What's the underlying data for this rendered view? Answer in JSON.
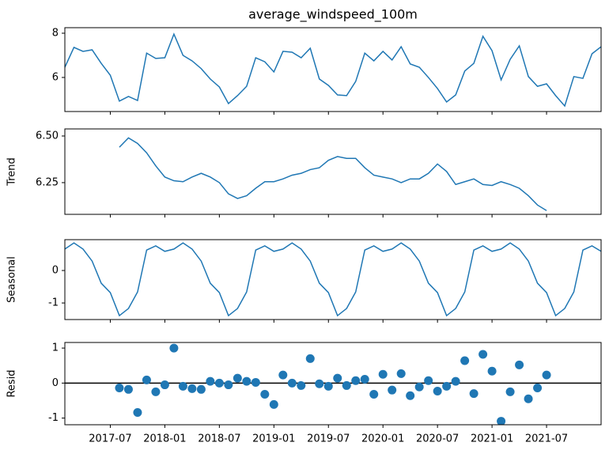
{
  "chart_data": [
    {
      "type": "line",
      "title": "average_windspeed_100m",
      "color": "#1f77b4",
      "x": [
        "2017-02",
        "2017-03",
        "2017-04",
        "2017-05",
        "2017-06",
        "2017-07",
        "2017-08",
        "2017-09",
        "2017-10",
        "2017-11",
        "2017-12",
        "2018-01",
        "2018-02",
        "2018-03",
        "2018-04",
        "2018-05",
        "2018-06",
        "2018-07",
        "2018-08",
        "2018-09",
        "2018-10",
        "2018-11",
        "2018-12",
        "2019-01",
        "2019-02",
        "2019-03",
        "2019-04",
        "2019-05",
        "2019-06",
        "2019-07",
        "2019-08",
        "2019-09",
        "2019-10",
        "2019-11",
        "2019-12",
        "2020-01",
        "2020-02",
        "2020-03",
        "2020-04",
        "2020-05",
        "2020-06",
        "2020-07",
        "2020-08",
        "2020-09",
        "2020-10",
        "2020-11",
        "2020-12",
        "2021-01",
        "2021-02",
        "2021-03",
        "2021-04",
        "2021-05",
        "2021-06",
        "2021-07",
        "2021-08",
        "2021-09",
        "2021-10",
        "2021-11",
        "2021-12",
        "2022-01"
      ],
      "values": [
        6.46,
        7.36,
        7.18,
        7.25,
        6.64,
        6.1,
        4.93,
        5.14,
        4.96,
        7.1,
        6.86,
        6.89,
        7.96,
        7.0,
        6.75,
        6.4,
        5.93,
        5.57,
        4.82,
        5.18,
        5.6,
        6.89,
        6.71,
        6.25,
        7.18,
        7.14,
        6.89,
        7.32,
        5.93,
        5.64,
        5.21,
        5.18,
        5.82,
        7.1,
        6.75,
        7.18,
        6.79,
        7.39,
        6.61,
        6.46,
        6.0,
        5.5,
        4.89,
        5.21,
        6.29,
        6.64,
        7.86,
        7.21,
        5.89,
        6.82,
        7.43,
        6.04,
        5.6,
        5.71,
        5.18,
        4.71,
        6.04,
        5.96,
        7.07,
        7.39
      ],
      "xlim": [
        "2017-02",
        "2022-01"
      ],
      "ylim": [
        4.46,
        8.25
      ],
      "yticks": [
        6,
        8
      ]
    },
    {
      "type": "line",
      "ylabel": "Trend",
      "color": "#1f77b4",
      "x": [
        "2017-02",
        "2017-03",
        "2017-04",
        "2017-05",
        "2017-06",
        "2017-07",
        "2017-08",
        "2017-09",
        "2017-10",
        "2017-11",
        "2017-12",
        "2018-01",
        "2018-02",
        "2018-03",
        "2018-04",
        "2018-05",
        "2018-06",
        "2018-07",
        "2018-08",
        "2018-09",
        "2018-10",
        "2018-11",
        "2018-12",
        "2019-01",
        "2019-02",
        "2019-03",
        "2019-04",
        "2019-05",
        "2019-06",
        "2019-07",
        "2019-08",
        "2019-09",
        "2019-10",
        "2019-11",
        "2019-12",
        "2020-01",
        "2020-02",
        "2020-03",
        "2020-04",
        "2020-05",
        "2020-06",
        "2020-07",
        "2020-08",
        "2020-09",
        "2020-10",
        "2020-11",
        "2020-12",
        "2021-01",
        "2021-02",
        "2021-03",
        "2021-04",
        "2021-05",
        "2021-06",
        "2021-07",
        "2021-08",
        "2021-09",
        "2021-10",
        "2021-11",
        "2021-12",
        "2022-01"
      ],
      "values": [
        null,
        null,
        null,
        null,
        null,
        null,
        6.44,
        6.49,
        6.46,
        6.41,
        6.34,
        6.28,
        6.26,
        6.255,
        6.28,
        6.3,
        6.28,
        6.25,
        6.19,
        6.165,
        6.18,
        6.22,
        6.255,
        6.255,
        6.27,
        6.29,
        6.3,
        6.32,
        6.33,
        6.37,
        6.39,
        6.38,
        6.38,
        6.33,
        6.29,
        6.28,
        6.27,
        6.25,
        6.27,
        6.27,
        6.3,
        6.35,
        6.31,
        6.24,
        6.255,
        6.27,
        6.24,
        6.235,
        6.255,
        6.24,
        6.22,
        6.18,
        6.13,
        6.1,
        null,
        null,
        null,
        null,
        null,
        null
      ],
      "xlim": [
        "2017-02",
        "2022-01"
      ],
      "ylim": [
        6.08,
        6.538
      ],
      "yticks": [
        {
          "value": 6.25,
          "label": "6.25"
        },
        {
          "value": 6.5,
          "label": "6.50"
        }
      ]
    },
    {
      "type": "line",
      "ylabel": "Seasonal",
      "color": "#1f77b4",
      "x": [
        "2017-02",
        "2017-03",
        "2017-04",
        "2017-05",
        "2017-06",
        "2017-07",
        "2017-08",
        "2017-09",
        "2017-10",
        "2017-11",
        "2017-12",
        "2018-01",
        "2018-02",
        "2018-03",
        "2018-04",
        "2018-05",
        "2018-06",
        "2018-07",
        "2018-08",
        "2018-09",
        "2018-10",
        "2018-11",
        "2018-12",
        "2019-01",
        "2019-02",
        "2019-03",
        "2019-04",
        "2019-05",
        "2019-06",
        "2019-07",
        "2019-08",
        "2019-09",
        "2019-10",
        "2019-11",
        "2019-12",
        "2020-01",
        "2020-02",
        "2020-03",
        "2020-04",
        "2020-05",
        "2020-06",
        "2020-07",
        "2020-08",
        "2020-09",
        "2020-10",
        "2020-11",
        "2020-12",
        "2021-01",
        "2021-02",
        "2021-03",
        "2021-04",
        "2021-05",
        "2021-06",
        "2021-07",
        "2021-08",
        "2021-09",
        "2021-10",
        "2021-11",
        "2021-12",
        "2022-01"
      ],
      "values": [
        0.66,
        0.85,
        0.66,
        0.29,
        -0.39,
        -0.68,
        -1.39,
        -1.17,
        -0.66,
        0.63,
        0.76,
        0.59,
        0.66,
        0.85,
        0.66,
        0.29,
        -0.39,
        -0.68,
        -1.39,
        -1.17,
        -0.66,
        0.63,
        0.76,
        0.59,
        0.66,
        0.85,
        0.66,
        0.29,
        -0.39,
        -0.68,
        -1.39,
        -1.17,
        -0.66,
        0.63,
        0.76,
        0.59,
        0.66,
        0.85,
        0.66,
        0.29,
        -0.39,
        -0.68,
        -1.39,
        -1.17,
        -0.66,
        0.63,
        0.76,
        0.59,
        0.66,
        0.85,
        0.66,
        0.29,
        -0.39,
        -0.68,
        -1.39,
        -1.17,
        -0.66,
        0.63,
        0.76,
        0.59
      ],
      "xlim": [
        "2017-02",
        "2022-01"
      ],
      "ylim": [
        -1.51,
        0.95
      ],
      "yticks": [
        -1,
        0
      ]
    },
    {
      "type": "scatter",
      "ylabel": "Resid",
      "color": "#1f77b4",
      "x": [
        "2017-08",
        "2017-09",
        "2017-10",
        "2017-11",
        "2017-12",
        "2018-01",
        "2018-02",
        "2018-03",
        "2018-04",
        "2018-05",
        "2018-06",
        "2018-07",
        "2018-08",
        "2018-09",
        "2018-10",
        "2018-11",
        "2018-12",
        "2019-01",
        "2019-02",
        "2019-03",
        "2019-04",
        "2019-05",
        "2019-06",
        "2019-07",
        "2019-08",
        "2019-09",
        "2019-10",
        "2019-11",
        "2019-12",
        "2020-01",
        "2020-02",
        "2020-03",
        "2020-04",
        "2020-05",
        "2020-06",
        "2020-07",
        "2020-08",
        "2020-09",
        "2020-10",
        "2020-11",
        "2020-12",
        "2021-01",
        "2021-02",
        "2021-03",
        "2021-04",
        "2021-05",
        "2021-06",
        "2021-07"
      ],
      "values": [
        -0.14,
        -0.18,
        -0.84,
        0.09,
        -0.25,
        -0.05,
        1.0,
        -0.09,
        -0.16,
        -0.18,
        0.05,
        0.0,
        -0.05,
        0.14,
        0.05,
        0.02,
        -0.32,
        -0.61,
        0.23,
        0.0,
        -0.07,
        0.7,
        -0.02,
        -0.09,
        0.14,
        -0.07,
        0.07,
        0.11,
        -0.32,
        0.25,
        -0.2,
        0.27,
        -0.36,
        -0.11,
        0.07,
        -0.23,
        -0.09,
        0.05,
        0.64,
        -0.3,
        0.82,
        0.34,
        -1.09,
        -0.25,
        0.52,
        -0.45,
        -0.14,
        0.23
      ],
      "xlim": [
        "2017-02",
        "2022-01"
      ],
      "ylim": [
        -1.19,
        1.16
      ],
      "yticks": [
        -1,
        0,
        1
      ],
      "xticks": [
        "2017-07",
        "2018-01",
        "2018-07",
        "2019-01",
        "2019-07",
        "2020-01",
        "2020-07",
        "2021-01",
        "2021-07"
      ]
    }
  ]
}
